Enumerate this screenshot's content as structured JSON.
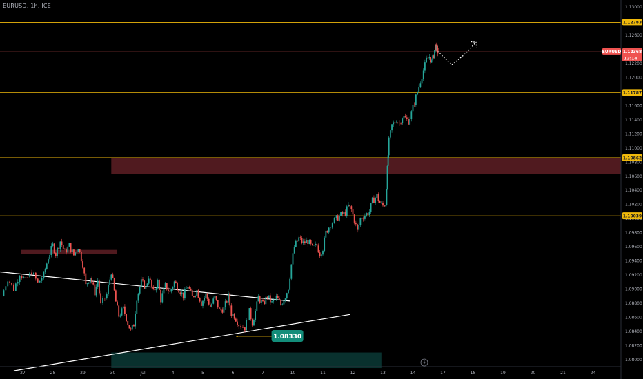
{
  "header": {
    "symbol_title": "EURUSD, 1h, ICE"
  },
  "chart_data": {
    "type": "candlestick",
    "y_range": [
      1.079,
      1.131
    ],
    "x_range": [
      0,
      20.3
    ],
    "x_ticks": [
      {
        "label": "27",
        "x": 0
      },
      {
        "label": "28",
        "x": 1
      },
      {
        "label": "29",
        "x": 2
      },
      {
        "label": "30",
        "x": 3
      },
      {
        "label": "Jul",
        "x": 4
      },
      {
        "label": "4",
        "x": 5
      },
      {
        "label": "5",
        "x": 6
      },
      {
        "label": "6",
        "x": 7
      },
      {
        "label": "7",
        "x": 8
      },
      {
        "label": "10",
        "x": 9
      },
      {
        "label": "11",
        "x": 10
      },
      {
        "label": "12",
        "x": 11
      },
      {
        "label": "13",
        "x": 12
      },
      {
        "label": "14",
        "x": 13
      },
      {
        "label": "17",
        "x": 14
      },
      {
        "label": "18",
        "x": 15
      },
      {
        "label": "19",
        "x": 16
      },
      {
        "label": "20",
        "x": 17
      },
      {
        "label": "21",
        "x": 18
      },
      {
        "label": "24",
        "x": 19
      }
    ],
    "y_ticks": [
      "1.13000",
      "1.12600",
      "1.12400",
      "1.12200",
      "1.12000",
      "1.11800",
      "1.11600",
      "1.11400",
      "1.11200",
      "1.11000",
      "1.10800",
      "1.10600",
      "1.10400",
      "1.10200",
      "1.10000",
      "1.09800",
      "1.09600",
      "1.09400",
      "1.09200",
      "1.09000",
      "1.08800",
      "1.08600",
      "1.08400",
      "1.08200",
      "1.08000"
    ],
    "price_series": [
      [
        -0.7,
        1.089
      ],
      [
        -0.5,
        1.0915
      ],
      [
        -0.3,
        1.09
      ],
      [
        -0.1,
        1.0922
      ],
      [
        0.1,
        1.0912
      ],
      [
        0.3,
        1.0925
      ],
      [
        0.5,
        1.0908
      ],
      [
        0.7,
        1.092
      ],
      [
        0.85,
        1.0945
      ],
      [
        1.0,
        1.0962
      ],
      [
        1.1,
        1.095
      ],
      [
        1.25,
        1.0968
      ],
      [
        1.4,
        1.0952
      ],
      [
        1.55,
        1.0962
      ],
      [
        1.7,
        1.0948
      ],
      [
        1.85,
        1.096
      ],
      [
        2.0,
        1.0935
      ],
      [
        2.1,
        1.0905
      ],
      [
        2.25,
        1.0918
      ],
      [
        2.4,
        1.0895
      ],
      [
        2.5,
        1.0912
      ],
      [
        2.6,
        1.0878
      ],
      [
        2.8,
        1.0892
      ],
      [
        2.95,
        1.0925
      ],
      [
        3.1,
        1.0882
      ],
      [
        3.2,
        1.0862
      ],
      [
        3.35,
        1.0872
      ],
      [
        3.5,
        1.0852
      ],
      [
        3.6,
        1.084
      ],
      [
        3.7,
        1.085
      ],
      [
        3.8,
        1.0888
      ],
      [
        3.95,
        1.091
      ],
      [
        4.1,
        1.0902
      ],
      [
        4.2,
        1.0918
      ],
      [
        4.35,
        1.0895
      ],
      [
        4.5,
        1.091
      ],
      [
        4.6,
        1.0885
      ],
      [
        4.75,
        1.0905
      ],
      [
        4.9,
        1.0895
      ],
      [
        5.05,
        1.091
      ],
      [
        5.2,
        1.09
      ],
      [
        5.35,
        1.089
      ],
      [
        5.5,
        1.0905
      ],
      [
        5.65,
        1.0888
      ],
      [
        5.8,
        1.0898
      ],
      [
        5.95,
        1.088
      ],
      [
        6.1,
        1.0892
      ],
      [
        6.25,
        1.0875
      ],
      [
        6.4,
        1.0888
      ],
      [
        6.55,
        1.087
      ],
      [
        6.7,
        1.0872
      ],
      [
        6.85,
        1.089
      ],
      [
        6.95,
        1.0865
      ],
      [
        7.05,
        1.0862
      ],
      [
        7.2,
        1.085
      ],
      [
        7.4,
        1.0845
      ],
      [
        7.55,
        1.0868
      ],
      [
        7.65,
        1.0852
      ],
      [
        7.75,
        1.0868
      ],
      [
        7.85,
        1.0888
      ],
      [
        8.0,
        1.0878
      ],
      [
        8.15,
        1.089
      ],
      [
        8.3,
        1.088
      ],
      [
        8.45,
        1.0888
      ],
      [
        8.6,
        1.0878
      ],
      [
        8.75,
        1.089
      ],
      [
        8.85,
        1.0902
      ],
      [
        8.95,
        1.0935
      ],
      [
        9.05,
        1.096
      ],
      [
        9.2,
        1.0972
      ],
      [
        9.35,
        1.0965
      ],
      [
        9.5,
        1.0968
      ],
      [
        9.65,
        1.0958
      ],
      [
        9.8,
        1.0962
      ],
      [
        9.9,
        1.095
      ],
      [
        10.0,
        1.0958
      ],
      [
        10.1,
        1.098
      ],
      [
        10.25,
        1.0992
      ],
      [
        10.45,
        1.1
      ],
      [
        10.6,
        1.1005
      ],
      [
        10.75,
        1.1008
      ],
      [
        10.85,
        1.1018
      ],
      [
        10.95,
        1.1012
      ],
      [
        11.05,
        1.0998
      ],
      [
        11.15,
        1.0982
      ],
      [
        11.25,
        1.1
      ],
      [
        11.4,
        1.1005
      ],
      [
        11.55,
        1.101
      ],
      [
        11.65,
        1.1025
      ],
      [
        11.8,
        1.1032
      ],
      [
        11.9,
        1.1022
      ],
      [
        12.0,
        1.1018
      ],
      [
        12.1,
        1.1022
      ],
      [
        12.15,
        1.107
      ],
      [
        12.2,
        1.111
      ],
      [
        12.3,
        1.1132
      ],
      [
        12.45,
        1.114
      ],
      [
        12.55,
        1.1135
      ],
      [
        12.65,
        1.1145
      ],
      [
        12.75,
        1.1142
      ],
      [
        12.85,
        1.1138
      ],
      [
        12.95,
        1.115
      ],
      [
        13.05,
        1.1165
      ],
      [
        13.15,
        1.118
      ],
      [
        13.25,
        1.1195
      ],
      [
        13.35,
        1.121
      ],
      [
        13.45,
        1.1225
      ],
      [
        13.55,
        1.123
      ],
      [
        13.62,
        1.1222
      ],
      [
        13.7,
        1.1232
      ],
      [
        13.75,
        1.1245
      ],
      [
        13.8,
        1.124
      ],
      [
        13.83,
        1.1237
      ]
    ],
    "horizontal_levels": [
      {
        "price": 1.12783,
        "label": "1.12783"
      },
      {
        "price": 1.11787,
        "label": "1.11787"
      },
      {
        "price": 1.10862,
        "label": "1.10862"
      },
      {
        "price": 1.10039,
        "label": "1.10039"
      }
    ],
    "current_price": {
      "symbol": "EURUSD",
      "price": "1.12368",
      "countdown": "13:14",
      "value": 1.12368
    },
    "trendlines": [
      {
        "from": [
          -0.9,
          1.0925
        ],
        "to": [
          8.9,
          1.0883
        ]
      },
      {
        "from": [
          -0.3,
          1.0784
        ],
        "to": [
          10.9,
          1.0864
        ]
      }
    ],
    "forecast_path": [
      [
        13.83,
        1.1237
      ],
      [
        14.3,
        1.1218
      ],
      [
        14.8,
        1.1236
      ],
      [
        15.1,
        1.125
      ]
    ],
    "zones": [
      {
        "x0": 2.95,
        "x1": 20.3,
        "y0": 1.1063,
        "y1": 1.10862,
        "color": "#5e1f25"
      },
      {
        "x0": -0.05,
        "x1": 3.15,
        "y0": 1.09495,
        "y1": 1.09555,
        "color": "#5e1f25"
      },
      {
        "x0": 2.95,
        "x1": 11.95,
        "y0": 1.0788,
        "y1": 1.081,
        "color": "#0b3a36"
      }
    ],
    "annotation": {
      "label": "1.08330",
      "price": 1.0833,
      "x": 7.6
    }
  }
}
